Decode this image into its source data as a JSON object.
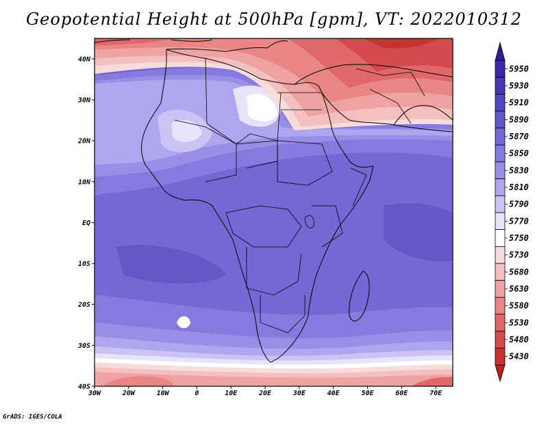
{
  "title": "Geopotential Height at 500hPa [gpm], VT: 2022010312",
  "credit": "GrADS: IGES/COLA",
  "map": {
    "lon_range": [
      -30,
      75
    ],
    "lat_range": [
      -40,
      45
    ],
    "lat_ticks": [
      {
        "value": 40,
        "label": "40N"
      },
      {
        "value": 30,
        "label": "30N"
      },
      {
        "value": 20,
        "label": "20N"
      },
      {
        "value": 10,
        "label": "10N"
      },
      {
        "value": 0,
        "label": "EQ"
      },
      {
        "value": -10,
        "label": "10S"
      },
      {
        "value": -20,
        "label": "20S"
      },
      {
        "value": -30,
        "label": "30S"
      },
      {
        "value": -40,
        "label": "40S"
      }
    ],
    "lon_ticks": [
      {
        "value": -30,
        "label": "30W"
      },
      {
        "value": -20,
        "label": "20W"
      },
      {
        "value": -10,
        "label": "10W"
      },
      {
        "value": 0,
        "label": "0"
      },
      {
        "value": 10,
        "label": "10E"
      },
      {
        "value": 20,
        "label": "20E"
      },
      {
        "value": 30,
        "label": "30E"
      },
      {
        "value": 40,
        "label": "40E"
      },
      {
        "value": 50,
        "label": "50E"
      },
      {
        "value": 60,
        "label": "60E"
      },
      {
        "value": 70,
        "label": "70E"
      }
    ]
  },
  "colorbar": {
    "levels": [
      {
        "label": "5950",
        "color": "#3a28a8"
      },
      {
        "label": "5930",
        "color": "#4637b3"
      },
      {
        "label": "5910",
        "color": "#5447bf"
      },
      {
        "label": "5890",
        "color": "#6458c9"
      },
      {
        "label": "5870",
        "color": "#7468d4"
      },
      {
        "label": "5850",
        "color": "#857ade"
      },
      {
        "label": "5830",
        "color": "#978ee6"
      },
      {
        "label": "5810",
        "color": "#aea6ee"
      },
      {
        "label": "5790",
        "color": "#c9c4f5"
      },
      {
        "label": "5770",
        "color": "#e6e4fb"
      },
      {
        "label": "5750",
        "color": "#ffffff"
      },
      {
        "label": "5730",
        "color": "#f8dcdc"
      },
      {
        "label": "5680",
        "color": "#f4bfbf"
      },
      {
        "label": "5630",
        "color": "#eea2a2"
      },
      {
        "label": "5580",
        "color": "#e88585"
      },
      {
        "label": "5530",
        "color": "#e06868"
      },
      {
        "label": "5480",
        "color": "#d54b4b"
      },
      {
        "label": "5430",
        "color": "#c83232"
      }
    ],
    "top_color": "#2a1a98",
    "bottom_color": "#b81f1f"
  }
}
